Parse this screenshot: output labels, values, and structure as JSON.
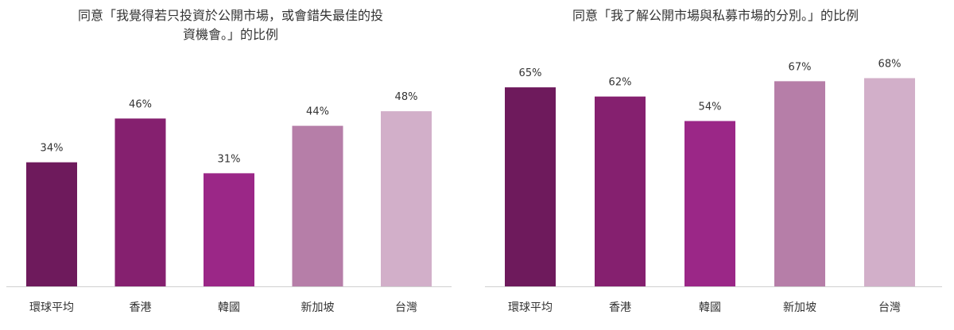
{
  "chart_data": [
    {
      "type": "bar",
      "title": "同意「我覺得若只投資於公開市場，或會錯失最佳的投\n資機會。」的比例",
      "categories": [
        "環球平均",
        "香港",
        "韓國",
        "新加坡",
        "台灣"
      ],
      "values": [
        34,
        46,
        31,
        44,
        48
      ],
      "value_labels": [
        "34%",
        "46%",
        "31%",
        "44%",
        "48%"
      ],
      "colors": [
        "#6e1a5c",
        "#85206f",
        "#9b2787",
        "#b67ea8",
        "#d2afc9"
      ],
      "xlabel": "",
      "ylabel": "",
      "ylim": [
        0,
        75
      ],
      "grid": false
    },
    {
      "type": "bar",
      "title": "同意「我了解公開市場與私募市場的分別。」的比例",
      "categories": [
        "環球平均",
        "香港",
        "韓國",
        "新加坡",
        "台灣"
      ],
      "values": [
        65,
        62,
        54,
        67,
        68
      ],
      "value_labels": [
        "65%",
        "62%",
        "54%",
        "67%",
        "68%"
      ],
      "colors": [
        "#6e1a5c",
        "#85206f",
        "#9b2787",
        "#b67ea8",
        "#d2afc9"
      ],
      "xlabel": "",
      "ylabel": "",
      "ylim": [
        0,
        75
      ],
      "grid": false
    }
  ]
}
